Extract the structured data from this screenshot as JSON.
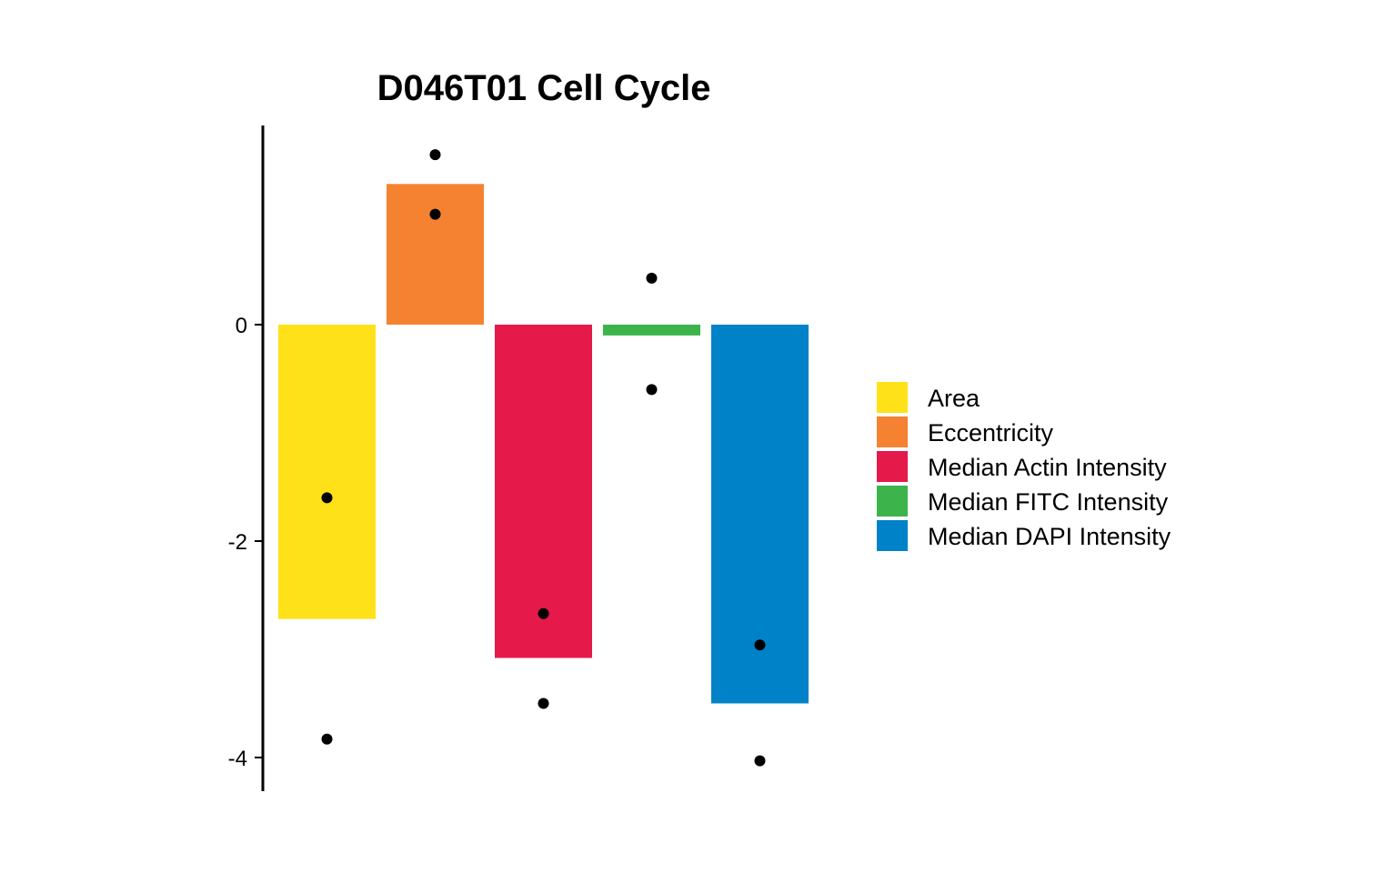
{
  "chart_data": {
    "type": "bar",
    "title": "D046T01 Cell Cycle",
    "xlabel": "",
    "ylabel": "",
    "ylim": [
      -4.3,
      1.85
    ],
    "yticks": [
      0,
      -2,
      -4
    ],
    "grid": false,
    "legend_position": "right",
    "categories": [
      "Area",
      "Eccentricity",
      "Median Actin Intensity",
      "Median FITC Intensity",
      "Median DAPI Intensity"
    ],
    "colors": [
      "#FFE119",
      "#F58231",
      "#E6194B",
      "#3CB44B",
      "#0082C8"
    ],
    "values": [
      -2.72,
      1.3,
      -3.08,
      -0.1,
      -3.5
    ],
    "points": [
      [
        -1.6,
        -3.83
      ],
      [
        1.57,
        1.02
      ],
      [
        -2.67,
        -3.5
      ],
      [
        0.43,
        -0.6
      ],
      [
        -2.96,
        -4.03
      ]
    ]
  }
}
